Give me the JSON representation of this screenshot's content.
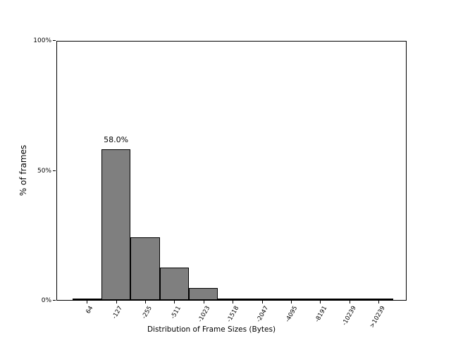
{
  "chart_data": {
    "type": "bar",
    "title": "",
    "xlabel": "Distribution of Frame Sizes (Bytes)",
    "ylabel": "% of frames",
    "categories": [
      "64",
      "-127",
      "-255",
      "-511",
      "-1023",
      "-1518",
      "-2047",
      "-4095",
      "-8191",
      "-10239",
      ">10239"
    ],
    "values": [
      0.1,
      58.0,
      24.2,
      12.6,
      4.5,
      0.6,
      0.0,
      0.0,
      0.0,
      0.0,
      0.0
    ],
    "ylim": [
      0,
      100
    ],
    "ytick_values": [
      0,
      50,
      100
    ],
    "ytick_labels": [
      "0%",
      "50%",
      "100%"
    ],
    "grid": false,
    "legend": "none",
    "background_color": "#ffffff",
    "bar_color": "#7f7f7f",
    "bar_edge_color": "#000000",
    "annotation": {
      "text": "58.0%",
      "category_index": 1,
      "value": 58.0
    }
  }
}
